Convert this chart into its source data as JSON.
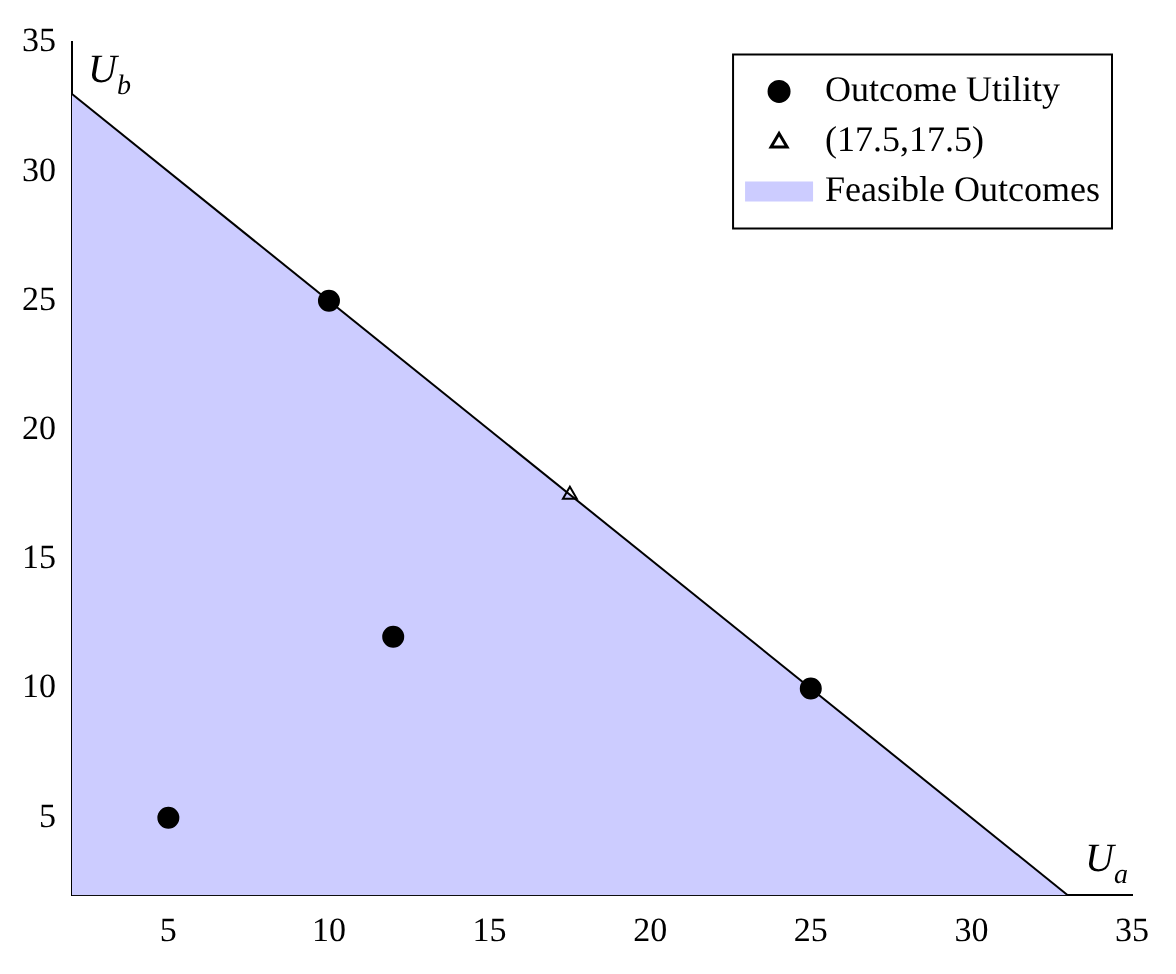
{
  "chart_data": {
    "type": "scatter",
    "xlabel": "U$_{a}$",
    "ylabel": "U$_{b}$",
    "xlim": [
      2,
      35
    ],
    "ylim": [
      2,
      35
    ],
    "xticks": [
      5,
      10,
      15,
      20,
      25,
      30,
      35
    ],
    "yticks": [
      5,
      10,
      15,
      20,
      25,
      30,
      35
    ],
    "grid": false,
    "legend": "top right",
    "series": [
      {
        "name": "Outcome Utility",
        "marker": "circle",
        "color": "#000000",
        "x": [
          5,
          10,
          12,
          25
        ],
        "values": [
          5,
          25,
          12,
          10
        ]
      },
      {
        "name": "(17.5,17.5)",
        "marker": "triangle",
        "color": "#000000",
        "x": [
          17.5
        ],
        "values": [
          17.5
        ]
      },
      {
        "name": "Feasible Outcomes",
        "type": "area",
        "color": "#ccccff",
        "x": [
          2,
          33
        ],
        "values": [
          33,
          2
        ]
      }
    ]
  }
}
